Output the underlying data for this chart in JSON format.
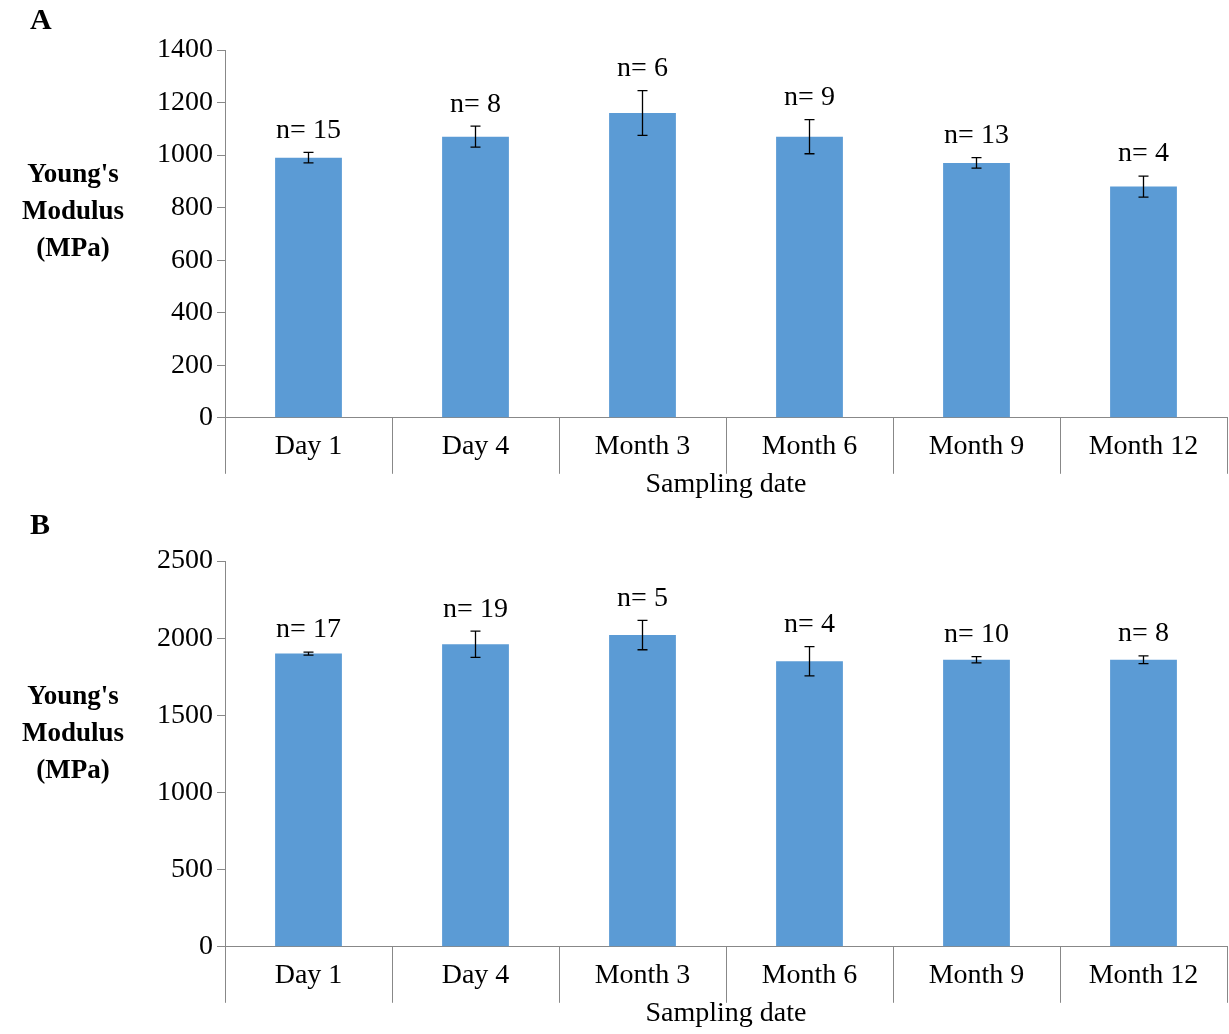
{
  "chart_data": [
    {
      "type": "bar",
      "categories": [
        "Day 1",
        "Day 4",
        "Month 3",
        "Month 6",
        "Month 9",
        "Month 12"
      ],
      "values": [
        990,
        1070,
        1160,
        1070,
        970,
        880
      ],
      "errors": [
        20,
        40,
        85,
        65,
        20,
        40
      ],
      "color": "#5b9bd5",
      "xlabel": "Sampling date",
      "ylabel": "Young's Modulus (MPa)",
      "ylim": [
        0,
        1400
      ],
      "yticks": [
        0,
        200,
        400,
        600,
        800,
        1000,
        1200,
        1400
      ],
      "grid": false,
      "legend": false,
      "annotations": [
        "A",
        {
          "text": "n= 15",
          "x": "Day 1",
          "y": 1010
        },
        {
          "text": "n= 8",
          "x": "Day 4",
          "y": 1110
        },
        {
          "text": "n= 6",
          "x": "Month 3",
          "y": 1245
        },
        {
          "text": "n= 9",
          "x": "Month 6",
          "y": 1135
        },
        {
          "text": "n= 13",
          "x": "Month 9",
          "y": 990
        },
        {
          "text": "n= 4",
          "x": "Month 12",
          "y": 920
        }
      ]
    },
    {
      "type": "bar",
      "categories": [
        "Day 1",
        "Day 4",
        "Month 3",
        "Month 6",
        "Month 9",
        "Month 12"
      ],
      "values": [
        1900,
        1960,
        2020,
        1850,
        1860,
        1860
      ],
      "errors": [
        10,
        85,
        95,
        95,
        20,
        25
      ],
      "color": "#5b9bd5",
      "xlabel": "Sampling date",
      "ylabel": "Young's Modulus (MPa)",
      "ylim": [
        0,
        2500
      ],
      "yticks": [
        0,
        500,
        1000,
        1500,
        2000,
        2500
      ],
      "grid": false,
      "legend": false,
      "annotations": [
        "B",
        {
          "text": "n= 17",
          "x": "Day 1",
          "y": 1910
        },
        {
          "text": "n= 19",
          "x": "Day 4",
          "y": 2045
        },
        {
          "text": "n= 5",
          "x": "Month 3",
          "y": 2115
        },
        {
          "text": "n= 4",
          "x": "Month 6",
          "y": 1945
        },
        {
          "text": "n= 10",
          "x": "Month 9",
          "y": 1880
        },
        {
          "text": "n= 8",
          "x": "Month 12",
          "y": 1885
        }
      ]
    }
  ]
}
